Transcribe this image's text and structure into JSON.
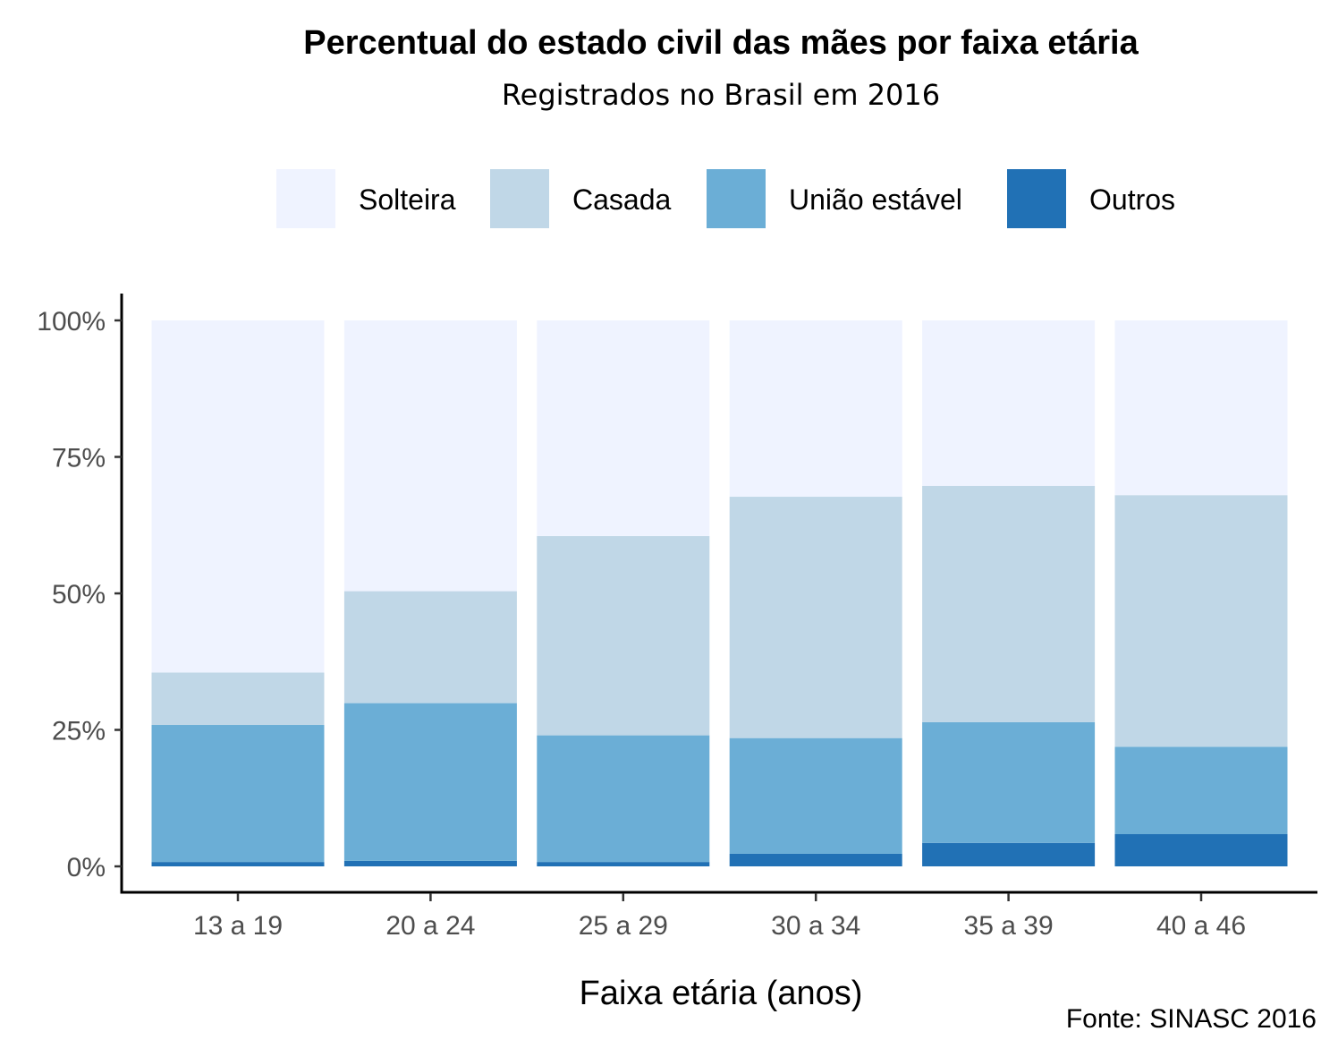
{
  "chart_data": {
    "type": "bar",
    "stacked": true,
    "title": "Percentual do estado civil das mães por faixa etária",
    "subtitle": "Registrados no Brasil em 2016",
    "xlabel": "Faixa etária (anos)",
    "ylabel": "",
    "caption": "Fonte: SINASC 2016",
    "ylim": [
      0,
      100
    ],
    "yticks": [
      0,
      25,
      50,
      75,
      100
    ],
    "ytick_labels": [
      "0%",
      "25%",
      "50%",
      "75%",
      "100%"
    ],
    "categories": [
      "13 a 19",
      "20 a 24",
      "25 a 29",
      "30 a 34",
      "35 a 39",
      "40 a 46"
    ],
    "legend_position": "top",
    "series": [
      {
        "name": "Outros",
        "color": "#2171b5",
        "values": [
          0.8,
          1.0,
          0.8,
          2.3,
          4.3,
          5.9
        ]
      },
      {
        "name": "União estável",
        "color": "#6baed6",
        "values": [
          25.1,
          28.9,
          23.2,
          21.2,
          22.1,
          16.0
        ]
      },
      {
        "name": "Casada",
        "color": "#c0d7e7",
        "values": [
          9.6,
          20.5,
          36.5,
          44.2,
          43.3,
          46.1
        ]
      },
      {
        "name": "Solteira",
        "color": "#eff3ff",
        "values": [
          64.5,
          49.6,
          39.5,
          32.3,
          30.3,
          32.0
        ]
      }
    ],
    "legend_order": [
      "Solteira",
      "Casada",
      "União estável",
      "Outros"
    ]
  }
}
